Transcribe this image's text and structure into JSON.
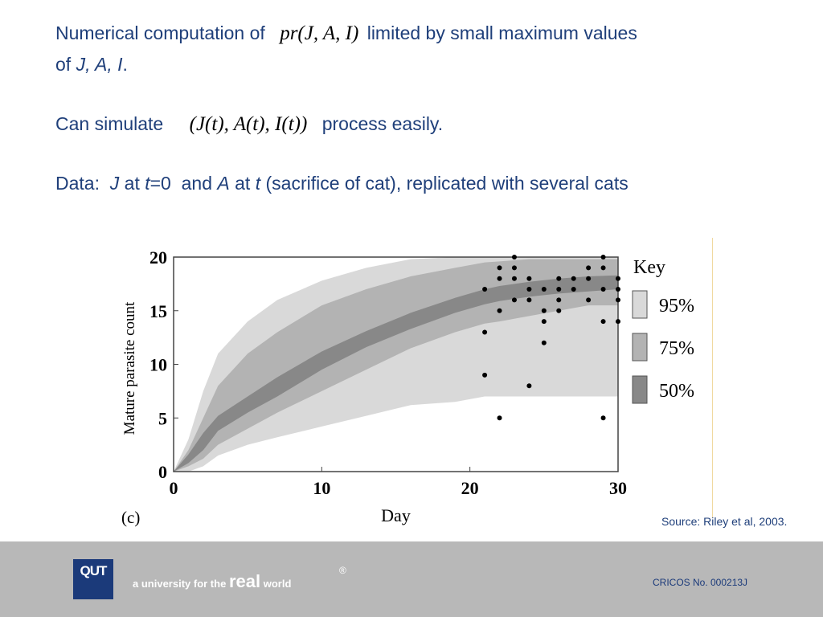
{
  "slide": {
    "line1": {
      "pre": "Numerical computation of",
      "math": "pr(J, A, I)",
      "post": "limited by small maximum values"
    },
    "line2": {
      "pre": "of",
      "vars": "J, A, I",
      "post": "."
    },
    "line3": {
      "pre": "Can simulate",
      "math": "(J(t), A(t), I(t))",
      "post": "process easily."
    },
    "line4": {
      "label": "Data:",
      "j": "J",
      "at1": "at",
      "t1": "t",
      "eq0": "=0",
      "and": "and",
      "a": "A",
      "at2": "at",
      "t2": "t",
      "rest": "(sacrifice of cat), replicated with several cats"
    },
    "source": "Source: Riley et al, 2003."
  },
  "chart_data": {
    "type": "area",
    "panel_label": "(c)",
    "xlabel": "Day",
    "ylabel": "Mature parasite count",
    "xlim": [
      0,
      30
    ],
    "ylim": [
      0,
      20
    ],
    "xticks": [
      0,
      10,
      20,
      30
    ],
    "yticks": [
      0,
      5,
      10,
      15,
      20
    ],
    "legend": {
      "title": "Key",
      "position": "right",
      "entries": [
        {
          "label": "95%",
          "color": "#d9d9d9"
        },
        {
          "label": "75%",
          "color": "#b3b3b3"
        },
        {
          "label": "50%",
          "color": "#888888"
        }
      ]
    },
    "bands": [
      {
        "level": "95%",
        "color": "#d9d9d9",
        "x": [
          0,
          1,
          2,
          3,
          5,
          7,
          10,
          13,
          16,
          19,
          21,
          22,
          24,
          26,
          28,
          30
        ],
        "lower": [
          0,
          0,
          0.5,
          1.5,
          2.5,
          3.2,
          4.2,
          5.2,
          6.2,
          6.5,
          7,
          7,
          7,
          7,
          7,
          7
        ],
        "upper": [
          0,
          3,
          7.5,
          11,
          14,
          16,
          17.8,
          19,
          19.8,
          20,
          20,
          20,
          20,
          20,
          20,
          20
        ]
      },
      {
        "level": "75%",
        "color": "#b3b3b3",
        "x": [
          0,
          1,
          2,
          3,
          5,
          7,
          10,
          13,
          16,
          19,
          21,
          22,
          24,
          26,
          28,
          30
        ],
        "lower": [
          0,
          0.5,
          1.2,
          2.5,
          4,
          5.5,
          7.5,
          9.5,
          11.5,
          13,
          13.8,
          14,
          14.5,
          15,
          15.5,
          15.5
        ],
        "upper": [
          0,
          2,
          5,
          8,
          11,
          13,
          15.5,
          17,
          18.2,
          19,
          19.5,
          19.6,
          19.8,
          19.8,
          19.8,
          19.8
        ]
      },
      {
        "level": "50%",
        "color": "#888888",
        "x": [
          0,
          1,
          2,
          3,
          5,
          7,
          10,
          13,
          16,
          19,
          21,
          22,
          24,
          26,
          28,
          30
        ],
        "lower": [
          0,
          0.8,
          2,
          3.8,
          5.5,
          7,
          9.5,
          11.6,
          13.3,
          14.8,
          15.6,
          15.9,
          16.3,
          16.6,
          16.8,
          17
        ],
        "upper": [
          0,
          1.6,
          3.6,
          5.2,
          7,
          8.8,
          11.2,
          13.1,
          14.8,
          16.2,
          17,
          17.3,
          17.7,
          18,
          18.2,
          18.3
        ]
      }
    ],
    "points": [
      {
        "x": 21,
        "y": 17
      },
      {
        "x": 21,
        "y": 13
      },
      {
        "x": 21,
        "y": 9
      },
      {
        "x": 22,
        "y": 19
      },
      {
        "x": 22,
        "y": 18
      },
      {
        "x": 22,
        "y": 15
      },
      {
        "x": 22,
        "y": 5
      },
      {
        "x": 23,
        "y": 20
      },
      {
        "x": 23,
        "y": 19
      },
      {
        "x": 23,
        "y": 18
      },
      {
        "x": 23,
        "y": 16
      },
      {
        "x": 24,
        "y": 18
      },
      {
        "x": 24,
        "y": 17
      },
      {
        "x": 24,
        "y": 16
      },
      {
        "x": 24,
        "y": 8
      },
      {
        "x": 25,
        "y": 17
      },
      {
        "x": 25,
        "y": 15
      },
      {
        "x": 25,
        "y": 14
      },
      {
        "x": 25,
        "y": 12
      },
      {
        "x": 26,
        "y": 18
      },
      {
        "x": 26,
        "y": 17
      },
      {
        "x": 26,
        "y": 16
      },
      {
        "x": 26,
        "y": 15
      },
      {
        "x": 27,
        "y": 18
      },
      {
        "x": 27,
        "y": 17
      },
      {
        "x": 28,
        "y": 19
      },
      {
        "x": 28,
        "y": 18
      },
      {
        "x": 28,
        "y": 16
      },
      {
        "x": 29,
        "y": 20
      },
      {
        "x": 29,
        "y": 19
      },
      {
        "x": 29,
        "y": 17
      },
      {
        "x": 29,
        "y": 14
      },
      {
        "x": 29,
        "y": 5
      },
      {
        "x": 30,
        "y": 18
      },
      {
        "x": 30,
        "y": 17
      },
      {
        "x": 30,
        "y": 16
      },
      {
        "x": 30,
        "y": 14
      }
    ]
  },
  "footer": {
    "logo": "QUT",
    "tagline_pre": "a university for the",
    "tagline_real": "real",
    "tagline_post": "world",
    "registered": "®",
    "cricos": "CRICOS No. 000213J"
  }
}
